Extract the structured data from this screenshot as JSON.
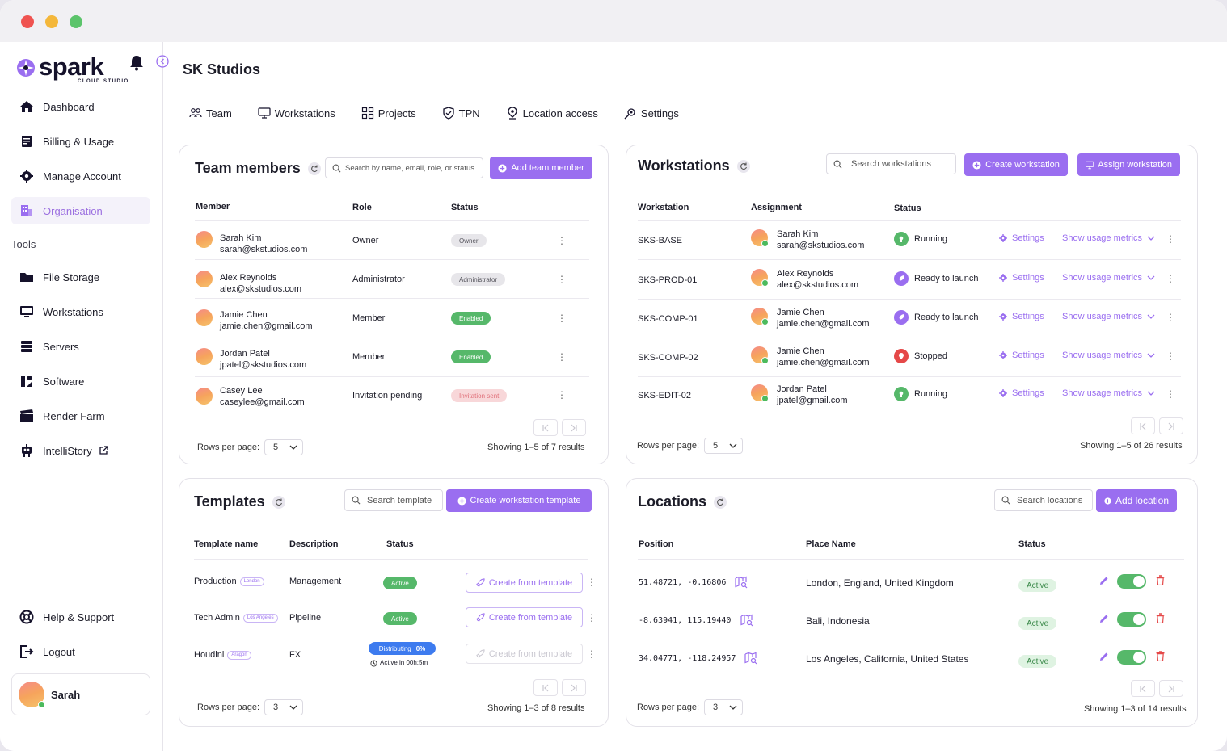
{
  "app": {
    "logo": "spark",
    "logo_sub": "CLOUD STUDIO"
  },
  "sidebar": {
    "items": [
      {
        "label": "Dashboard",
        "icon": "home-icon"
      },
      {
        "label": "Billing & Usage",
        "icon": "receipt-icon"
      },
      {
        "label": "Manage Account",
        "icon": "gear-icon"
      },
      {
        "label": "Organisation",
        "icon": "building-icon",
        "active": true
      }
    ],
    "tools_label": "Tools",
    "tools": [
      {
        "label": "File Storage",
        "icon": "folder-icon"
      },
      {
        "label": "Workstations",
        "icon": "monitor-icon"
      },
      {
        "label": "Servers",
        "icon": "server-icon"
      },
      {
        "label": "Software",
        "icon": "software-icon"
      },
      {
        "label": "Render Farm",
        "icon": "clapper-icon"
      },
      {
        "label": "IntelliStory",
        "icon": "robot-icon"
      }
    ],
    "bottom": [
      {
        "label": "Help & Support",
        "icon": "lifebuoy-icon"
      },
      {
        "label": "Logout",
        "icon": "logout-icon"
      }
    ],
    "user": {
      "name": "Sarah"
    }
  },
  "page": {
    "title": "SK Studios"
  },
  "tabs": [
    {
      "label": "Team",
      "icon": "team-icon"
    },
    {
      "label": "Workstations",
      "icon": "monitor-icon"
    },
    {
      "label": "Projects",
      "icon": "grid-icon"
    },
    {
      "label": "TPN",
      "icon": "shield-icon"
    },
    {
      "label": "Location access",
      "icon": "pin-icon"
    },
    {
      "label": "Settings",
      "icon": "gear-icon"
    }
  ],
  "team": {
    "title": "Team members",
    "search_placeholder": "Search by name, email, role, or status",
    "add_label": "Add team member",
    "headers": [
      "Member",
      "Role",
      "Status"
    ],
    "rows": [
      {
        "name": "Sarah Kim",
        "email": "sarah@skstudios.com",
        "role": "Owner",
        "status": "Owner",
        "status_kind": "grey"
      },
      {
        "name": "Alex Reynolds",
        "email": "alex@skstudios.com",
        "role": "Administrator",
        "status": "Administrator",
        "status_kind": "grey"
      },
      {
        "name": "Jamie Chen",
        "email": "jamie.chen@gmail.com",
        "role": "Member",
        "status": "Enabled",
        "status_kind": "green"
      },
      {
        "name": "Jordan Patel",
        "email": "jpatel@skstudios.com",
        "role": "Member",
        "status": "Enabled",
        "status_kind": "green"
      },
      {
        "name": "Casey Lee",
        "email": "caseylee@gmail.com",
        "role": "Invitation pending",
        "status": "Invitation sent",
        "status_kind": "red"
      }
    ],
    "rows_per_page_label": "Rows per page:",
    "rows_per_page": "5",
    "showing": "Showing 1–5 of 7 results"
  },
  "workstations": {
    "title": "Workstations",
    "search_placeholder": "Search workstations",
    "create_label": "Create workstation",
    "assign_label": "Assign workstation",
    "headers": [
      "Workstation",
      "Assignment",
      "Status"
    ],
    "settings_label": "Settings",
    "metrics_label": "Show usage metrics",
    "rows": [
      {
        "id": "SKS-BASE",
        "name": "Sarah Kim",
        "email": "sarah@skstudios.com",
        "status": "Running",
        "kind": "running"
      },
      {
        "id": "SKS-PROD-01",
        "name": "Alex Reynolds",
        "email": "alex@skstudios.com",
        "status": "Ready to launch",
        "kind": "ready"
      },
      {
        "id": "SKS-COMP-01",
        "name": "Jamie Chen",
        "email": "jamie.chen@gmail.com",
        "status": "Ready to launch",
        "kind": "ready"
      },
      {
        "id": "SKS-COMP-02",
        "name": "Jamie Chen",
        "email": "jamie.chen@gmail.com",
        "status": "Stopped",
        "kind": "stopped"
      },
      {
        "id": "SKS-EDIT-02",
        "name": "Jordan Patel",
        "email": "jpatel@gmail.com",
        "status": "Running",
        "kind": "running"
      }
    ],
    "rows_per_page_label": "Rows per page:",
    "rows_per_page": "5",
    "showing": "Showing 1–5 of 26 results"
  },
  "templates": {
    "title": "Templates",
    "search_placeholder": "Search template",
    "create_label": "Create workstation template",
    "headers": [
      "Template name",
      "Description",
      "Status"
    ],
    "action_label": "Create from template",
    "rows": [
      {
        "name": "Production",
        "tag": "London",
        "desc": "Management",
        "status": "Active"
      },
      {
        "name": "Tech Admin",
        "tag": "Los Angeles",
        "desc": "Pipeline",
        "status": "Active"
      },
      {
        "name": "Houdini",
        "tag": "Aragon",
        "desc": "FX",
        "status": "Distributing",
        "progress": "0%",
        "sub": "Active in 00h:5m"
      }
    ],
    "rows_per_page_label": "Rows per page:",
    "rows_per_page": "3",
    "showing": "Showing 1–3 of 8 results"
  },
  "locations": {
    "title": "Locations",
    "search_placeholder": "Search locations",
    "add_label": "Add location",
    "headers": [
      "Position",
      "Place Name",
      "Status"
    ],
    "rows": [
      {
        "pos": "51.48721, -0.16806",
        "place": "London, England, United Kingdom",
        "status": "Active"
      },
      {
        "pos": "-8.63941, 115.19440",
        "place": "Bali, Indonesia",
        "status": "Active"
      },
      {
        "pos": "34.04771, -118.24957",
        "place": "Los Angeles, California, United States",
        "status": "Active"
      }
    ],
    "rows_per_page_label": "Rows per page:",
    "rows_per_page": "3",
    "showing": "Showing 1–3 of 14 results"
  },
  "colors": {
    "accent": "#9a6ef0",
    "success": "#56b86a",
    "danger": "#e54848"
  }
}
